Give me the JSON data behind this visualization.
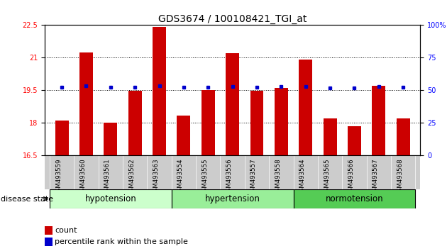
{
  "title": "GDS3674 / 100108421_TGI_at",
  "samples": [
    "GSM493559",
    "GSM493560",
    "GSM493561",
    "GSM493562",
    "GSM493563",
    "GSM493554",
    "GSM493555",
    "GSM493556",
    "GSM493557",
    "GSM493558",
    "GSM493564",
    "GSM493565",
    "GSM493566",
    "GSM493567",
    "GSM493568"
  ],
  "bar_values": [
    18.1,
    21.25,
    18.02,
    19.48,
    22.4,
    18.35,
    19.5,
    21.2,
    19.48,
    19.62,
    20.9,
    18.2,
    17.85,
    19.7,
    18.2
  ],
  "dot_values": [
    19.65,
    19.72,
    19.65,
    19.65,
    19.72,
    19.65,
    19.65,
    19.68,
    19.65,
    19.68,
    19.68,
    19.62,
    19.62,
    19.68,
    19.65
  ],
  "groups": [
    {
      "name": "hypotension",
      "start": 0,
      "end": 4,
      "color": "#ccffcc"
    },
    {
      "name": "hypertension",
      "start": 5,
      "end": 9,
      "color": "#99ee99"
    },
    {
      "name": "normotension",
      "start": 10,
      "end": 14,
      "color": "#55cc55"
    }
  ],
  "ylim_left": [
    16.5,
    22.5
  ],
  "ylim_right": [
    0,
    100
  ],
  "yticks_left": [
    16.5,
    18.0,
    19.5,
    21.0,
    22.5
  ],
  "ytick_labels_left": [
    "16.5",
    "18",
    "19.5",
    "21",
    "22.5"
  ],
  "yticks_right": [
    0,
    25,
    50,
    75,
    100
  ],
  "ytick_labels_right": [
    "0",
    "25",
    "50",
    "75",
    "100%"
  ],
  "bar_color": "#cc0000",
  "dot_color": "#0000cc",
  "bar_width": 0.55,
  "tick_label_area_color": "#cccccc",
  "legend_count_label": "count",
  "legend_pct_label": "percentile rank within the sample",
  "disease_state_label": "disease state",
  "title_fontsize": 10,
  "tick_fontsize": 7,
  "label_fontsize": 8,
  "group_fontsize": 8.5
}
